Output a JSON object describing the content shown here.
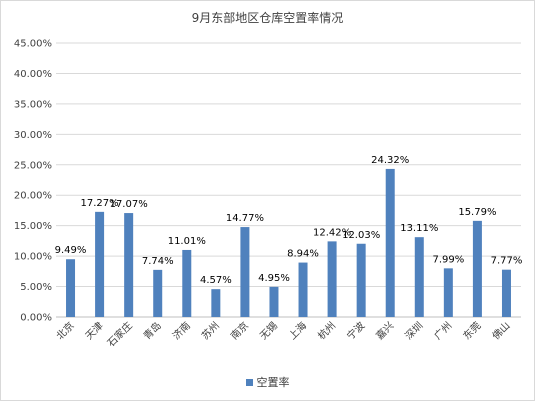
{
  "chart_data": {
    "type": "bar",
    "title": "9月东部地区仓库空置率情况",
    "categories": [
      "北京",
      "天津",
      "石家庄",
      "青岛",
      "济南",
      "苏州",
      "南京",
      "无锡",
      "上海",
      "杭州",
      "宁波",
      "嘉兴",
      "深圳",
      "广州",
      "东莞",
      "佛山"
    ],
    "series": [
      {
        "name": "空置率",
        "values": [
          9.49,
          17.27,
          17.07,
          7.74,
          11.01,
          4.57,
          14.77,
          4.95,
          8.94,
          12.42,
          12.03,
          24.32,
          13.11,
          7.99,
          15.79,
          7.77
        ],
        "labels": [
          "9.49%",
          "17.27%",
          "17.07%",
          "7.74%",
          "11.01%",
          "4.57%",
          "14.77%",
          "4.95%",
          "8.94%",
          "12.42%",
          "12.03%",
          "24.32%",
          "13.11%",
          "7.99%",
          "15.79%",
          "7.77%"
        ]
      }
    ],
    "ylim": [
      0,
      45
    ],
    "yticks": [
      "0.00%",
      "5.00%",
      "10.00%",
      "15.00%",
      "20.00%",
      "25.00%",
      "30.00%",
      "35.00%",
      "40.00%",
      "45.00%"
    ],
    "grid": true,
    "legend": "bottom",
    "colors": {
      "bar": "#4f81bd",
      "grid": "#d9d9d9",
      "axis": "#bfbfbf"
    }
  }
}
